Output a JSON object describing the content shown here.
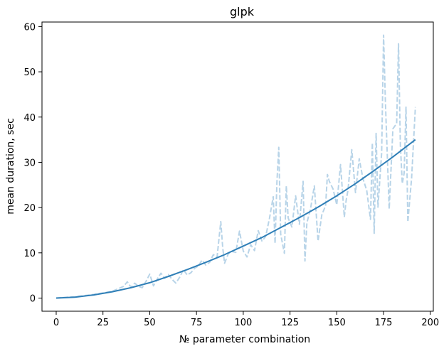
{
  "chart_data": {
    "type": "line",
    "title": "glpk",
    "xlabel": "№ parameter combination",
    "ylabel": "mean duration, sec",
    "xlim": [
      -7.6,
      201.6
    ],
    "ylim": [
      -2.9,
      61
    ],
    "xticks": [
      0,
      25,
      50,
      75,
      100,
      125,
      150,
      175,
      200
    ],
    "yticks": [
      0,
      10,
      20,
      30,
      40,
      50,
      60
    ],
    "grid": false,
    "legend": "none",
    "series": [
      {
        "style": "dashed",
        "color": "#b8d4e8",
        "x": [
          0,
          10,
          20,
          30,
          36,
          38,
          40,
          42,
          44,
          46,
          48,
          50,
          52,
          54,
          56,
          58,
          60,
          62,
          64,
          66,
          68,
          70,
          72,
          74,
          76,
          78,
          80,
          82,
          84,
          86,
          88,
          89,
          90,
          92,
          94,
          96,
          98,
          100,
          102,
          104,
          106,
          108,
          110,
          112,
          114,
          116,
          117,
          118,
          119,
          120,
          122,
          123,
          124,
          126,
          128,
          130,
          132,
          133,
          134,
          136,
          138,
          140,
          142,
          144,
          145,
          146,
          148,
          150,
          152,
          154,
          155,
          156,
          158,
          160,
          162,
          164,
          166,
          168,
          169,
          170,
          171,
          172,
          174,
          175,
          176,
          178,
          180,
          182,
          183,
          184,
          185,
          186,
          187,
          188,
          190,
          192
        ],
        "y": [
          0,
          0.3,
          0.8,
          1.5,
          2.6,
          3.6,
          2.4,
          3.3,
          2.6,
          2.3,
          3.7,
          5.3,
          2.7,
          4.2,
          5.5,
          4.4,
          5.2,
          4.1,
          3.3,
          4.6,
          6.3,
          5.1,
          5.6,
          6.6,
          7.1,
          8.4,
          7.3,
          7.9,
          9.6,
          9.1,
          16.9,
          11.2,
          7.7,
          9.8,
          10.3,
          10.1,
          14.8,
          10.4,
          9.1,
          11.8,
          10.5,
          14.9,
          12.6,
          13.6,
          17.6,
          22.4,
          12.1,
          25.6,
          33.3,
          14.1,
          9.9,
          24.8,
          17.7,
          15.7,
          22.6,
          16.3,
          25.8,
          8.2,
          16.6,
          19.8,
          24.8,
          12.6,
          18.4,
          20.4,
          27.3,
          25.8,
          24.1,
          20.6,
          29.5,
          17.9,
          21.6,
          23.9,
          32.8,
          23.3,
          30.8,
          26.4,
          23.8,
          17.4,
          34.3,
          14.3,
          36.4,
          20.1,
          32.1,
          58.1,
          43.2,
          19.7,
          37.4,
          38.6,
          56.2,
          33.8,
          25.3,
          27.6,
          42.2,
          16.8,
          26.5,
          42.2
        ]
      },
      {
        "style": "solid",
        "color": "#2f7fb7",
        "x": [
          0,
          10,
          20,
          30,
          40,
          50,
          60,
          70,
          80,
          90,
          100,
          110,
          120,
          130,
          140,
          150,
          160,
          170,
          180,
          192
        ],
        "y": [
          0,
          0.2,
          0.7,
          1.4,
          2.3,
          3.4,
          4.8,
          6.3,
          7.9,
          9.6,
          11.5,
          13.4,
          15.6,
          17.8,
          20.1,
          22.6,
          25.3,
          28.2,
          31.2,
          35
        ]
      }
    ]
  }
}
